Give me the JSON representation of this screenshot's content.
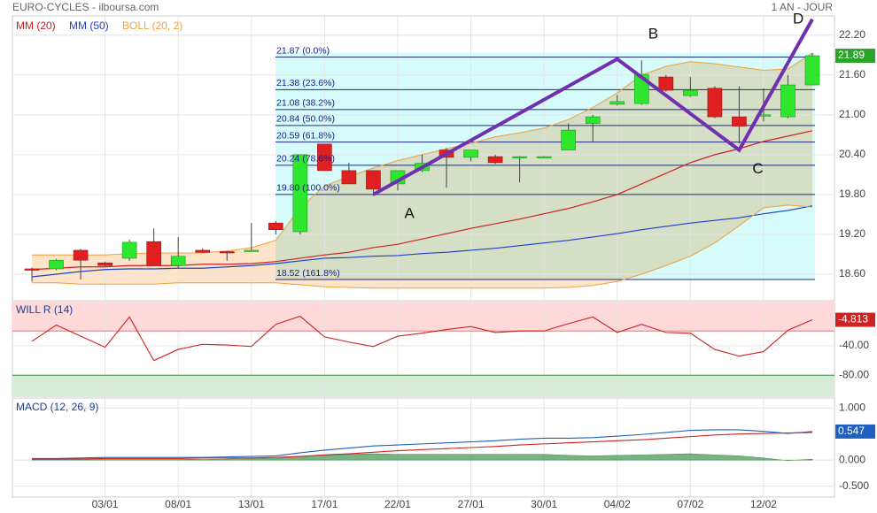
{
  "chart_data": [
    {
      "type": "candlestick",
      "title": "EURO-CYCLES - ilboursa.com",
      "period": "1 AN - JOUR",
      "categories": [
        null,
        null,
        null,
        "03/01",
        null,
        null,
        "08/01",
        null,
        null,
        "13/01",
        null,
        null,
        "17/01",
        null,
        null,
        "22/01",
        null,
        null,
        "27/01",
        null,
        null,
        "30/01",
        null,
        null,
        "04/02",
        null,
        null,
        "07/02",
        null,
        null,
        "12/02",
        null,
        null
      ],
      "open": [
        18.68,
        18.68,
        18.96,
        18.77,
        18.84,
        19.09,
        18.73,
        18.96,
        18.94,
        18.95,
        19.37,
        19.24,
        20.56,
        20.16,
        20.16,
        19.96,
        20.16,
        20.47,
        20.36,
        20.37,
        20.36,
        20.37,
        20.47,
        20.87,
        21.16,
        21.17,
        21.57,
        21.29,
        21.4,
        20.97,
        20.99,
        20.97,
        21.45
      ],
      "high": [
        18.7,
        18.83,
        18.98,
        18.79,
        19.12,
        19.29,
        19.16,
        18.99,
        18.95,
        19.37,
        19.4,
        20.4,
        20.56,
        20.28,
        20.16,
        20.16,
        20.4,
        20.5,
        20.47,
        20.4,
        20.38,
        20.38,
        20.87,
        21.0,
        21.3,
        21.82,
        21.6,
        21.57,
        21.43,
        21.43,
        21.4,
        21.6,
        21.93
      ],
      "low": [
        18.49,
        18.66,
        18.52,
        18.72,
        18.8,
        18.72,
        18.69,
        18.92,
        18.8,
        18.95,
        19.2,
        19.2,
        20.16,
        19.96,
        19.78,
        19.86,
        20.14,
        19.9,
        20.3,
        20.26,
        19.98,
        20.35,
        20.47,
        20.6,
        21.14,
        21.15,
        21.35,
        21.27,
        20.95,
        20.57,
        20.9,
        20.95,
        21.45
      ],
      "close": [
        18.67,
        18.81,
        18.81,
        18.73,
        19.08,
        18.73,
        18.87,
        18.93,
        18.93,
        18.96,
        19.27,
        20.4,
        20.16,
        19.96,
        19.88,
        20.16,
        20.27,
        20.36,
        20.47,
        20.28,
        20.37,
        20.37,
        20.77,
        20.97,
        21.2,
        21.61,
        21.37,
        21.37,
        20.97,
        20.83,
        21.0,
        21.45,
        21.89
      ],
      "up_color": "#2ee62e",
      "down_color": "#e02020",
      "series": [
        {
          "name": "MM (20)",
          "color": "#cc2222",
          "values": [
            18.67,
            18.69,
            18.71,
            18.71,
            18.73,
            18.73,
            18.73,
            18.75,
            18.75,
            18.76,
            18.79,
            18.84,
            18.89,
            18.93,
            19.0,
            19.05,
            19.13,
            19.21,
            19.29,
            19.36,
            19.43,
            19.51,
            19.59,
            19.69,
            19.8,
            19.96,
            20.12,
            20.28,
            20.4,
            20.49,
            20.6,
            20.68,
            20.76
          ]
        },
        {
          "name": "MM (50)",
          "color": "#1f3fcc",
          "values": [
            18.56,
            18.6,
            18.64,
            18.67,
            18.68,
            18.68,
            18.69,
            18.69,
            18.71,
            18.73,
            18.76,
            18.8,
            18.84,
            18.85,
            18.87,
            18.88,
            18.91,
            18.93,
            18.96,
            18.99,
            19.03,
            19.07,
            19.11,
            19.16,
            19.21,
            19.27,
            19.32,
            19.37,
            19.41,
            19.45,
            19.51,
            19.56,
            19.63
          ]
        },
        {
          "name": "BOLL (20, 2)",
          "color": "#f0a040",
          "fill": "#fde3c8",
          "upper": [
            18.89,
            18.89,
            18.89,
            18.89,
            18.91,
            18.92,
            18.92,
            18.92,
            18.95,
            19.0,
            19.11,
            19.6,
            19.93,
            20.07,
            20.2,
            20.31,
            20.4,
            20.49,
            20.57,
            20.67,
            20.73,
            20.8,
            20.93,
            21.11,
            21.33,
            21.6,
            21.73,
            21.8,
            21.77,
            21.72,
            21.67,
            21.69,
            21.93
          ],
          "lower": [
            18.47,
            18.47,
            18.45,
            18.45,
            18.45,
            18.45,
            18.47,
            18.47,
            18.47,
            18.47,
            18.47,
            18.44,
            18.41,
            18.4,
            18.39,
            18.39,
            18.39,
            18.39,
            18.39,
            18.39,
            18.39,
            18.39,
            18.4,
            18.43,
            18.49,
            18.6,
            18.73,
            18.87,
            19.07,
            19.33,
            19.6,
            19.64,
            19.61
          ]
        }
      ],
      "fib_levels": [
        {
          "value": 21.87,
          "label": "21.87  (0.0%)"
        },
        {
          "value": 21.38,
          "label": "21.38  (23.6%)"
        },
        {
          "value": 21.08,
          "label": "21.08  (38.2%)"
        },
        {
          "value": 20.84,
          "label": "20.84  (50.0%)"
        },
        {
          "value": 20.59,
          "label": "20.59  (61.8%)"
        },
        {
          "value": 20.24,
          "label": "20.24  (78.6%)"
        },
        {
          "value": 19.8,
          "label": "19.80  (100.0%)"
        },
        {
          "value": 18.52,
          "label": "18.52  (161.8%)"
        }
      ],
      "pattern": {
        "color": "#7030b0",
        "points": [
          {
            "label": "A",
            "x": 14,
            "value": 19.8
          },
          {
            "label": "B",
            "x": 24,
            "value": 21.84
          },
          {
            "label": "C",
            "x": 29,
            "value": 20.47
          },
          {
            "label": "D",
            "x": 32,
            "value": 22.44
          }
        ]
      },
      "ylim": [
        18.2,
        22.49
      ],
      "yticks": [
        {
          "value": 22.2,
          "label": "22.20"
        },
        {
          "value": 21.6,
          "label": "21.60"
        },
        {
          "value": 21.0,
          "label": "21.00"
        },
        {
          "value": 20.4,
          "label": "20.40"
        },
        {
          "value": 19.8,
          "label": "19.80"
        },
        {
          "value": 19.2,
          "label": "19.20"
        },
        {
          "value": 18.6,
          "label": "18.60"
        }
      ],
      "grid": true
    },
    {
      "type": "line",
      "title": "WILL R (14)",
      "overbought": -20,
      "oversold": -80,
      "series": [
        {
          "color": "#cc2222",
          "values": [
            -34,
            -12,
            -27,
            -42,
            -1,
            -60,
            -45,
            -38,
            -39,
            -41,
            -11,
            0,
            -28,
            -35,
            -41,
            -27,
            -23,
            -18,
            -14,
            -22,
            -20,
            -20,
            -10,
            -1,
            -22,
            -11,
            -22,
            -23,
            -45,
            -54,
            -48,
            -19,
            -4.813
          ]
        }
      ],
      "ylim": [
        -108.4,
        18.6
      ],
      "yticks": [
        {
          "value": -40,
          "label": "-40.00"
        },
        {
          "value": -80,
          "label": "-80.00"
        }
      ],
      "grid": true
    },
    {
      "type": "line",
      "title": "MACD (12, 26, 9)",
      "series": [
        {
          "color": "#2060c0",
          "values": [
            0.03,
            0.03,
            0.04,
            0.05,
            0.05,
            0.05,
            0.05,
            0.05,
            0.06,
            0.07,
            0.08,
            0.14,
            0.19,
            0.23,
            0.27,
            0.29,
            0.31,
            0.33,
            0.35,
            0.37,
            0.4,
            0.42,
            0.42,
            0.43,
            0.46,
            0.49,
            0.53,
            0.57,
            0.58,
            0.58,
            0.55,
            0.51,
            0.547
          ]
        },
        {
          "color": "#cc2222",
          "values": [
            0.02,
            0.02,
            0.02,
            0.03,
            0.03,
            0.03,
            0.03,
            0.04,
            0.04,
            0.04,
            0.05,
            0.07,
            0.1,
            0.12,
            0.15,
            0.18,
            0.2,
            0.22,
            0.24,
            0.26,
            0.29,
            0.31,
            0.33,
            0.35,
            0.37,
            0.39,
            0.42,
            0.45,
            0.48,
            0.5,
            0.51,
            0.52,
            0.53
          ]
        },
        {
          "type": "area",
          "color": "#4a9a5a",
          "values": [
            0.01,
            0.01,
            0.02,
            0.02,
            0.02,
            0.02,
            0.02,
            0.01,
            0.02,
            0.03,
            0.03,
            0.07,
            0.09,
            0.11,
            0.12,
            0.11,
            0.11,
            0.11,
            0.11,
            0.11,
            0.11,
            0.11,
            0.09,
            0.08,
            0.09,
            0.1,
            0.11,
            0.12,
            0.1,
            0.08,
            0.04,
            -0.01,
            0.017
          ]
        }
      ],
      "ylim": [
        -0.71,
        1.19
      ],
      "yticks": [
        {
          "value": 1,
          "label": "1.000"
        },
        {
          "value": 0,
          "label": "0.000"
        },
        {
          "value": -0.5,
          "label": "-0.500"
        }
      ],
      "grid": true
    }
  ]
}
